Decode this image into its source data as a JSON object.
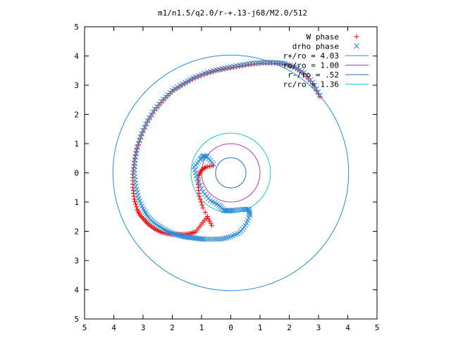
{
  "chart_data": {
    "type": "scatter",
    "title": "m1/n1.5/q2.0/r-+.13-j68/M2.0/512",
    "xlim": [
      -5,
      5
    ],
    "ylim": [
      -5,
      5
    ],
    "xticks": [
      -5,
      -4,
      -3,
      -2,
      -1,
      0,
      1,
      2,
      3,
      4,
      5
    ],
    "yticks": [
      -5,
      -4,
      -3,
      -2,
      -1,
      0,
      1,
      2,
      3,
      4,
      5
    ],
    "xtick_labels": [
      "5",
      "4",
      "3",
      "2",
      "1",
      "0",
      "1",
      "2",
      "3",
      "4",
      "5"
    ],
    "ytick_labels": [
      "5",
      "4",
      "3",
      "2",
      "1",
      "0",
      "1",
      "2",
      "3",
      "4",
      "5"
    ],
    "grid": false,
    "legend": "top-right",
    "series": [
      {
        "name": "W phase",
        "kind": "points",
        "marker": "plus",
        "color": "#ff0000",
        "x": [
          3.05,
          2.8,
          2.5,
          2.2,
          1.85,
          1.5,
          1.1,
          0.7,
          0.3,
          -0.1,
          -0.5,
          -0.9,
          -1.3,
          -1.65,
          -2.0,
          -2.3,
          -2.6,
          -2.85,
          -3.05,
          -3.2,
          -3.3,
          -3.35,
          -3.35,
          -3.3,
          -3.2,
          -3.1,
          -2.95,
          -2.8,
          -2.6,
          -2.4,
          -2.2,
          -2.0,
          -1.8,
          -1.6,
          -1.4,
          -1.2,
          -1.0,
          -0.8,
          -0.65,
          -0.95,
          -1.08,
          -1.12,
          -1.1,
          -1.0,
          -0.85,
          -0.6
        ],
        "y": [
          2.6,
          3.05,
          3.4,
          3.6,
          3.72,
          3.76,
          3.76,
          3.72,
          3.65,
          3.58,
          3.5,
          3.38,
          3.22,
          3.02,
          2.8,
          2.5,
          2.15,
          1.75,
          1.3,
          0.85,
          0.4,
          -0.05,
          -0.5,
          -0.9,
          -1.25,
          -1.45,
          -1.62,
          -1.78,
          -1.92,
          -2.02,
          -2.08,
          -2.1,
          -2.1,
          -2.1,
          -2.08,
          -2.02,
          -1.75,
          -1.5,
          -1.8,
          -1.2,
          -0.8,
          -0.4,
          -0.1,
          0.1,
          0.2,
          0.25
        ]
      },
      {
        "name": "drho phase",
        "kind": "points",
        "marker": "cross",
        "color": "#2a8bd8",
        "x": [
          3.05,
          2.8,
          2.5,
          2.2,
          1.85,
          1.5,
          1.1,
          0.7,
          0.3,
          -0.1,
          -0.5,
          -0.9,
          -1.3,
          -1.65,
          -2.0,
          -2.3,
          -2.6,
          -2.85,
          -3.05,
          -3.2,
          -3.28,
          -3.3,
          -3.25,
          -3.15,
          -3.0,
          -2.85,
          -2.7,
          -2.5,
          -2.3,
          -2.1,
          -1.9,
          -1.7,
          -1.5,
          -1.3,
          -1.1,
          -0.9,
          -0.6,
          -0.3,
          0.0,
          0.3,
          0.5,
          0.65,
          0.62,
          0.4,
          0.1,
          -0.1,
          -0.25,
          -0.4,
          -0.7,
          -0.95,
          -1.15,
          -1.25,
          -1.05,
          -0.95,
          -0.8,
          -0.6
        ],
        "y": [
          2.65,
          3.1,
          3.42,
          3.62,
          3.74,
          3.78,
          3.78,
          3.75,
          3.68,
          3.6,
          3.52,
          3.4,
          3.24,
          3.04,
          2.82,
          2.52,
          2.18,
          1.78,
          1.33,
          0.88,
          0.43,
          -0.02,
          -0.47,
          -0.88,
          -1.22,
          -1.48,
          -1.65,
          -1.8,
          -1.92,
          -2.03,
          -2.1,
          -2.16,
          -2.2,
          -2.22,
          -2.25,
          -2.27,
          -2.27,
          -2.26,
          -2.18,
          -2.05,
          -1.8,
          -1.45,
          -1.25,
          -1.25,
          -1.28,
          -1.3,
          -1.28,
          -1.1,
          -0.95,
          -0.65,
          -0.2,
          0.2,
          0.45,
          0.58,
          0.55,
          0.3
        ]
      },
      {
        "name": "r+/ro = 4.03",
        "kind": "circle",
        "radius": 4.03,
        "center": [
          0,
          0
        ],
        "color": "#2a8bd8",
        "x": [],
        "y": []
      },
      {
        "name": "ro/ro = 1.00",
        "kind": "circle",
        "radius": 1.0,
        "center": [
          0,
          0
        ],
        "color": "#b23fb2",
        "x": [],
        "y": []
      },
      {
        "name": "r-/ro = .52",
        "kind": "circle",
        "radius": 0.52,
        "center": [
          0,
          0
        ],
        "color": "#2a6fc0",
        "x": [],
        "y": []
      },
      {
        "name": "rc/ro = 1.36",
        "kind": "circle",
        "radius": 1.36,
        "center": [
          0,
          0
        ],
        "color": "#20c8d8",
        "x": [],
        "y": []
      }
    ]
  }
}
